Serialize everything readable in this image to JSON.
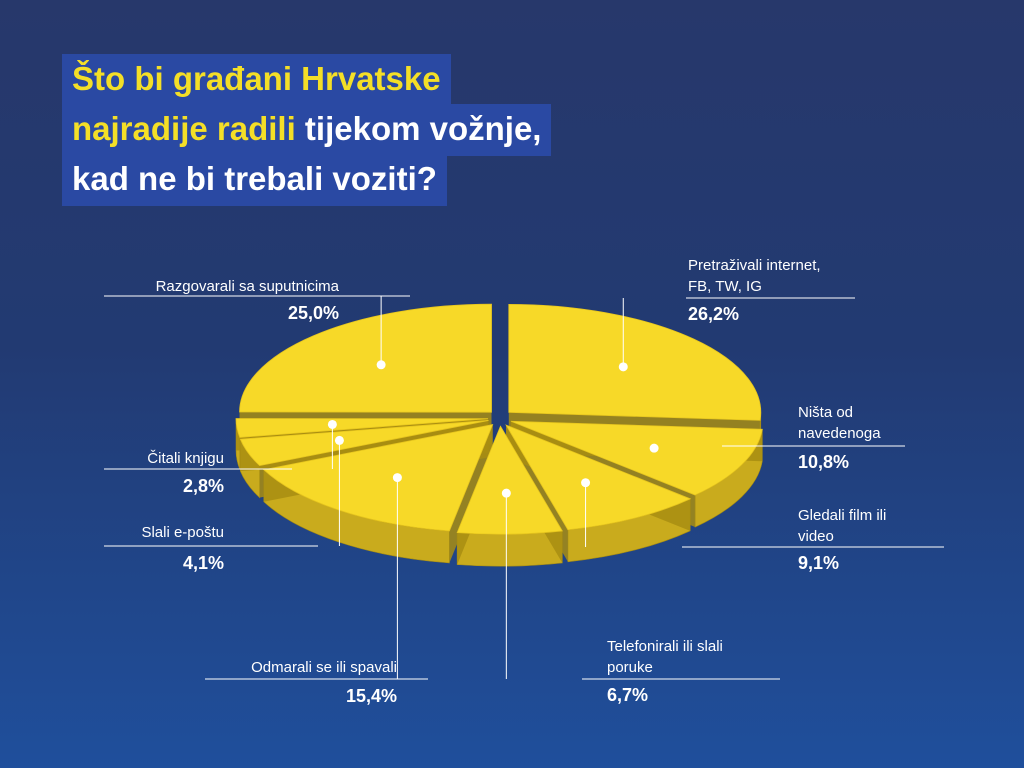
{
  "title": {
    "line1": "Što bi građani Hrvatske",
    "line2_yellow": "najradije radili",
    "line2_white": " tijekom vožnje,",
    "line3": "kad ne bi trebali voziti?"
  },
  "colors": {
    "slice_top": "#f7d928",
    "slice_side": "#c9ab1d",
    "slice_side_dark": "#a88d12",
    "accent": "#f4df27",
    "title_box": "#2a49a3"
  },
  "chart_data": {
    "type": "pie",
    "title": "Što bi građani Hrvatske najradije radili tijekom vožnje, kad ne bi trebali voziti?",
    "slices": [
      {
        "label_lines": [
          "Pretraživali internet,",
          "FB, TW, IG"
        ],
        "value": 26.2,
        "value_text": "26,2%"
      },
      {
        "label_lines": [
          "Ništa od",
          "navedenoga"
        ],
        "value": 10.8,
        "value_text": "10,8%"
      },
      {
        "label_lines": [
          "Gledali film ili",
          "video"
        ],
        "value": 9.1,
        "value_text": "9,1%"
      },
      {
        "label_lines": [
          "Telefonirali ili slali",
          "poruke"
        ],
        "value": 6.7,
        "value_text": "6,7%"
      },
      {
        "label_lines": [
          "Odmarali se ili spavali"
        ],
        "value": 15.4,
        "value_text": "15,4%"
      },
      {
        "label_lines": [
          "Slali e-poštu"
        ],
        "value": 4.1,
        "value_text": "4,1%"
      },
      {
        "label_lines": [
          "Čitali knjigu"
        ],
        "value": 2.8,
        "value_text": "2,8%"
      },
      {
        "label_lines": [
          "Razgovarali sa suputnicima"
        ],
        "value": 25.0,
        "value_text": "25,0%"
      }
    ]
  }
}
